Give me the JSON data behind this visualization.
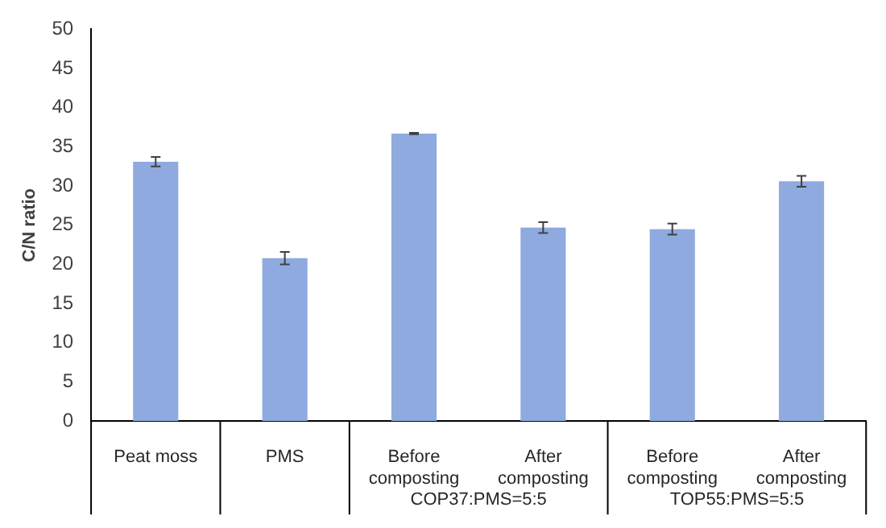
{
  "chart_data": {
    "type": "bar",
    "ylabel": "C/N ratio",
    "categories": [
      "Peat moss",
      "PMS",
      "Before composting",
      "After composting",
      "Before composting",
      "After composting"
    ],
    "values": [
      33.1,
      20.8,
      36.7,
      24.7,
      24.5,
      30.6
    ],
    "errors": [
      0.6,
      0.8,
      0.1,
      0.7,
      0.7,
      0.7
    ],
    "color": "#8eaadf",
    "ylim": [
      0,
      50
    ],
    "yticks": [
      0,
      5,
      10,
      15,
      20,
      25,
      30,
      35,
      40,
      45,
      50
    ],
    "grid": false,
    "legend": false,
    "annotations": [
      "COP37:PMS=5:5",
      "TOP55:PMS=5:5"
    ]
  }
}
